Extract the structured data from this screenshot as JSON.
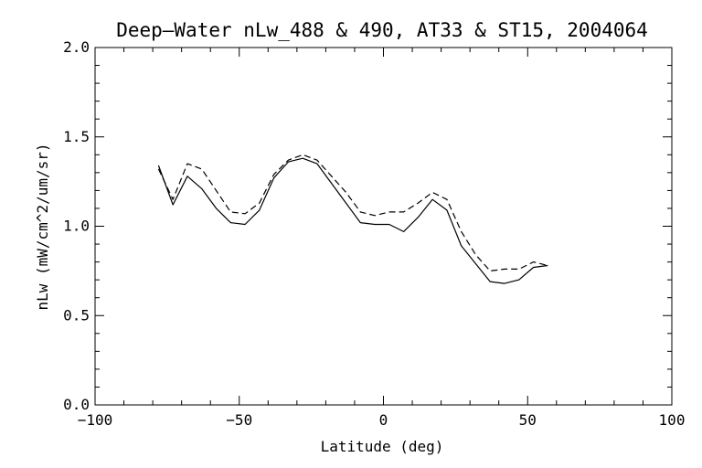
{
  "chart_data": {
    "type": "line",
    "title": "Deep—Water nLw_488 & 490, AT33 & ST15, 2004064",
    "xlabel": "Latitude (deg)",
    "ylabel": "nLw (mW/cm^2/um/sr)",
    "xlim": [
      -100,
      100
    ],
    "ylim": [
      0.0,
      2.0
    ],
    "x_major_ticks": [
      -100,
      -50,
      0,
      50,
      100
    ],
    "x_tick_labels": [
      "−100",
      "−50",
      "0",
      "50",
      "100"
    ],
    "y_major_ticks": [
      0.0,
      0.5,
      1.0,
      1.5,
      2.0
    ],
    "y_tick_labels": [
      "0.0",
      "0.5",
      "1.0",
      "1.5",
      "2.0"
    ],
    "grid": false,
    "series": [
      {
        "style": "solid",
        "color": "#000000",
        "x": [
          -78,
          -73,
          -68,
          -63,
          -58,
          -53,
          -48,
          -43,
          -38,
          -33,
          -28,
          -23,
          -18,
          -13,
          -8,
          -3,
          2,
          7,
          12,
          17,
          22,
          27,
          32,
          37,
          42,
          47,
          52,
          57
        ],
        "y": [
          1.34,
          1.12,
          1.28,
          1.21,
          1.1,
          1.02,
          1.01,
          1.09,
          1.27,
          1.36,
          1.38,
          1.35,
          1.24,
          1.13,
          1.02,
          1.01,
          1.01,
          0.97,
          1.05,
          1.15,
          1.09,
          0.89,
          0.79,
          0.69,
          0.68,
          0.7,
          0.77,
          0.78
        ]
      },
      {
        "style": "dashed",
        "color": "#000000",
        "x": [
          -78,
          -73,
          -68,
          -63,
          -58,
          -53,
          -48,
          -43,
          -38,
          -33,
          -28,
          -23,
          -18,
          -13,
          -8,
          -3,
          2,
          7,
          12,
          17,
          22,
          27,
          32,
          37,
          42,
          47,
          52,
          57
        ],
        "y": [
          1.32,
          1.15,
          1.35,
          1.32,
          1.2,
          1.08,
          1.07,
          1.13,
          1.29,
          1.37,
          1.4,
          1.37,
          1.28,
          1.19,
          1.08,
          1.06,
          1.08,
          1.08,
          1.13,
          1.19,
          1.15,
          0.97,
          0.84,
          0.75,
          0.76,
          0.76,
          0.8,
          0.78
        ]
      }
    ]
  }
}
